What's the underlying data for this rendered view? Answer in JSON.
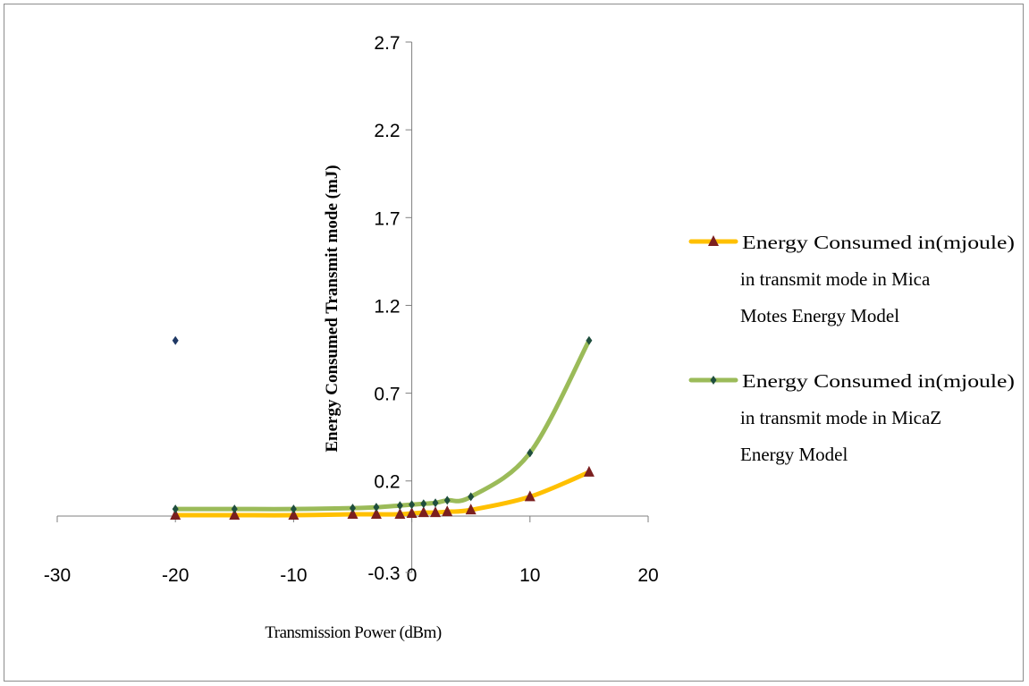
{
  "chart_data": {
    "type": "line",
    "title": "",
    "xlabel": "Transmission Power (dBm)",
    "ylabel": "Energy Consumed Transmit mode  (mJ)",
    "xlim": [
      -30,
      20
    ],
    "ylim": [
      -0.3,
      2.7
    ],
    "x_ticks": [
      -30,
      -20,
      -10,
      0,
      10,
      20
    ],
    "y_ticks": [
      -0.3,
      0.2,
      0.7,
      1.2,
      1.7,
      2.2,
      2.7
    ],
    "x_tick_labels": [
      "-30",
      "-20",
      "-10",
      "0",
      "10",
      "20"
    ],
    "y_tick_labels": [
      "-0.3",
      "0.2",
      "0.7",
      "1.2",
      "1.7",
      "2.2",
      "2.7"
    ],
    "grid": false,
    "legend_position": "right",
    "series": [
      {
        "name": "Energy Consumed in(mjoule) in transmit mode in Mica Motes Energy Model",
        "name_lines": [
          "Energy Consumed in(mjoule)",
          "in transmit mode in Mica",
          "Motes Energy Model"
        ],
        "color": "#FFC000",
        "marker": "triangle",
        "marker_color": "#7B1F1F",
        "x": [
          -20,
          -15,
          -10,
          -5,
          -3,
          -1,
          0,
          1,
          2,
          3,
          5,
          10,
          15
        ],
        "y": [
          0.005,
          0.005,
          0.005,
          0.01,
          0.01,
          0.01,
          0.015,
          0.02,
          0.02,
          0.025,
          0.035,
          0.11,
          0.25
        ]
      },
      {
        "name": "Energy Consumed in(mjoule) in transmit mode in MicaZ Energy Model",
        "name_lines": [
          "Energy Consumed in(mjoule)",
          "in transmit mode in MicaZ",
          "Energy Model"
        ],
        "color": "#9BBB59",
        "marker": "diamond",
        "marker_color": "#1F4E3D",
        "x": [
          -20,
          -15,
          -10,
          -5,
          -3,
          -1,
          0,
          1,
          2,
          3,
          5,
          10,
          15
        ],
        "y": [
          0.04,
          0.04,
          0.04,
          0.045,
          0.05,
          0.06,
          0.065,
          0.07,
          0.075,
          0.09,
          0.11,
          0.36,
          1.0
        ]
      }
    ],
    "outlier_point": {
      "x": -20,
      "y": 1.0,
      "marker": "diamond",
      "color": "#1F3864"
    }
  }
}
